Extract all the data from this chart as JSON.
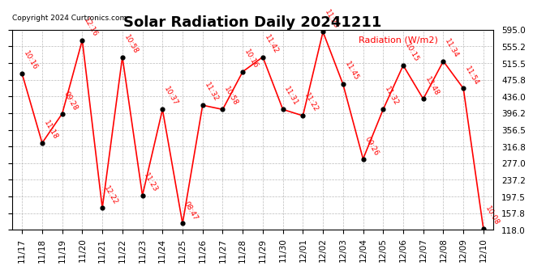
{
  "title": "Solar Radiation Daily 20241211",
  "copyright": "Copyright 2024 Curtronics.com",
  "ylabel": "Radiation (W/m2)",
  "x_labels": [
    "11/17",
    "11/18",
    "11/19",
    "11/20",
    "11/21",
    "11/22",
    "11/23",
    "11/24",
    "11/25",
    "11/26",
    "11/27",
    "11/28",
    "11/29",
    "11/30",
    "12/01",
    "12/02",
    "12/03",
    "12/04",
    "12/05",
    "12/06",
    "12/07",
    "12/08",
    "12/09",
    "12/10"
  ],
  "y_values": [
    490,
    325,
    395,
    570,
    170,
    530,
    200,
    405,
    133,
    415,
    405,
    495,
    530,
    405,
    390,
    590,
    465,
    287,
    405,
    510,
    430,
    520,
    455,
    120
  ],
  "point_labels": [
    "10:16",
    "11:18",
    "09:28",
    "12:16",
    "12:22",
    "10:58",
    "11:23",
    "10:37",
    "08:47",
    "11:32",
    "10:58",
    "10:16",
    "11:42",
    "11:31",
    "11:22",
    "11:23",
    "11:45",
    "09:26",
    "11:32",
    "10:15",
    "13:48",
    "11:34",
    "11:54",
    "10:08"
  ],
  "ylim_min": 118.0,
  "ylim_max": 595.0,
  "y_ticks": [
    118.0,
    157.8,
    197.5,
    237.2,
    277.0,
    316.8,
    356.5,
    396.2,
    436.0,
    475.8,
    515.5,
    555.2,
    595.0
  ],
  "line_color": "red",
  "marker_color": "black",
  "label_color": "red",
  "title_fontsize": 13,
  "point_label_fontsize": 6.5,
  "tick_fontsize": 7.5,
  "bg_color": "#ffffff",
  "grid_color": "#aaaaaa"
}
